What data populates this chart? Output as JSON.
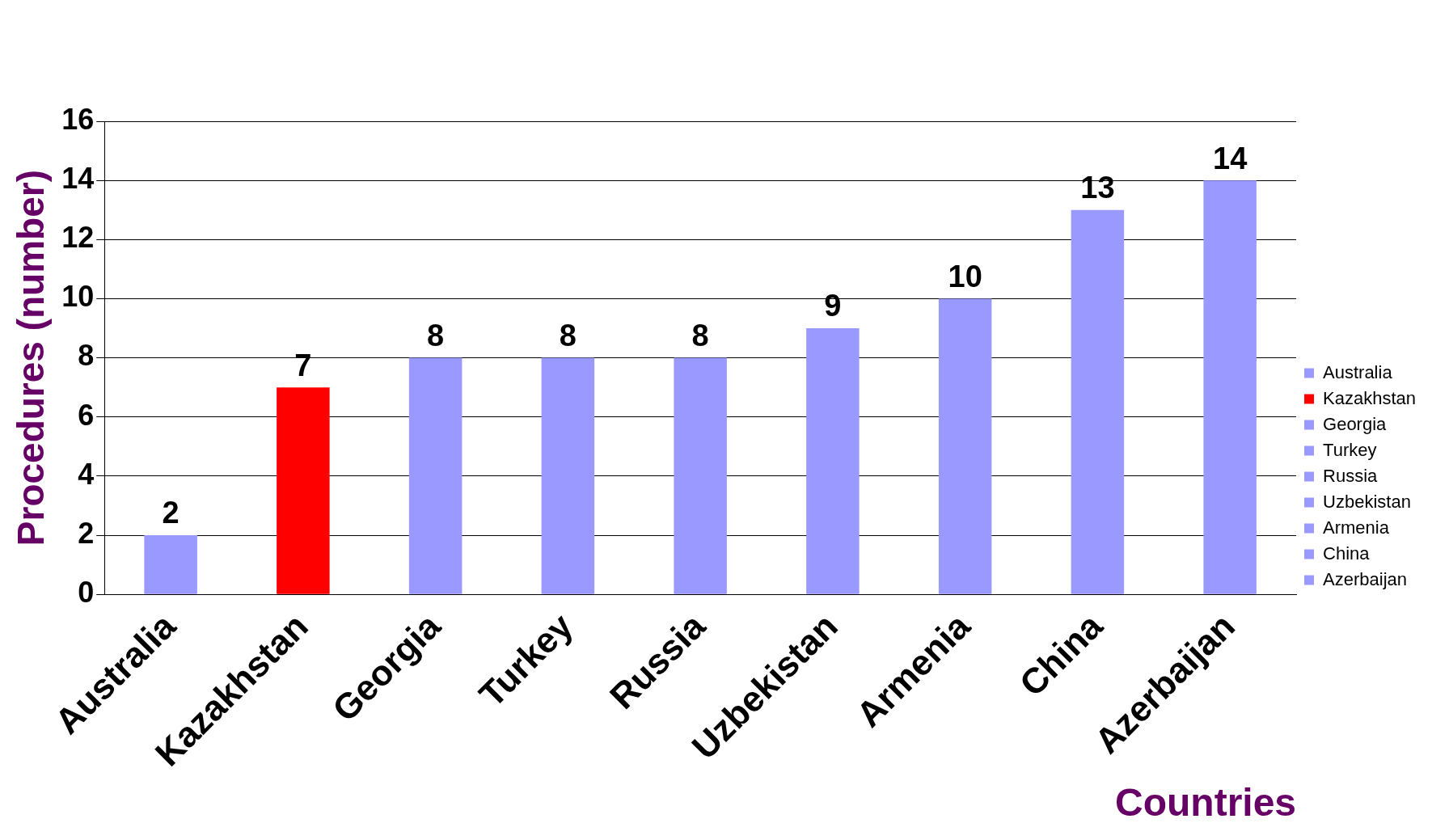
{
  "chart_data": {
    "type": "bar",
    "xlabel": "Countries",
    "ylabel": "Procedures (number)",
    "stacked": true,
    "categories": [
      "Australia",
      "Kazakhstan",
      "Georgia",
      "Turkey",
      "Russia",
      "Uzbekistan",
      "Armenia",
      "China",
      "Azerbaijan"
    ],
    "series": [
      {
        "name": "Australia",
        "color": "#9999ff",
        "values": [
          2,
          null,
          null,
          null,
          null,
          null,
          null,
          null,
          null
        ]
      },
      {
        "name": "Kazakhstan",
        "color": "#ff0000",
        "values": [
          null,
          7,
          null,
          null,
          null,
          null,
          null,
          null,
          null
        ]
      },
      {
        "name": "Georgia",
        "color": "#9999ff",
        "values": [
          null,
          null,
          8,
          null,
          null,
          null,
          null,
          null,
          null
        ]
      },
      {
        "name": "Turkey",
        "color": "#9999ff",
        "values": [
          null,
          null,
          null,
          8,
          null,
          null,
          null,
          null,
          null
        ]
      },
      {
        "name": "Russia",
        "color": "#9999ff",
        "values": [
          null,
          null,
          null,
          null,
          8,
          null,
          null,
          null,
          null
        ]
      },
      {
        "name": "Uzbekistan",
        "color": "#9999ff",
        "values": [
          null,
          null,
          null,
          null,
          null,
          9,
          null,
          null,
          null
        ]
      },
      {
        "name": "Armenia",
        "color": "#9999ff",
        "values": [
          null,
          null,
          null,
          null,
          null,
          null,
          10,
          null,
          null
        ]
      },
      {
        "name": "China",
        "color": "#9999ff",
        "values": [
          null,
          null,
          null,
          null,
          null,
          null,
          null,
          13,
          null
        ]
      },
      {
        "name": "Azerbaijan",
        "color": "#9999ff",
        "values": [
          null,
          null,
          null,
          null,
          null,
          null,
          null,
          null,
          14
        ]
      }
    ],
    "ylim": [
      0,
      16
    ],
    "yticks": [
      0,
      2,
      4,
      6,
      8,
      10,
      12,
      14,
      16
    ],
    "grid": "y",
    "legend": "right",
    "data_labels": true
  }
}
